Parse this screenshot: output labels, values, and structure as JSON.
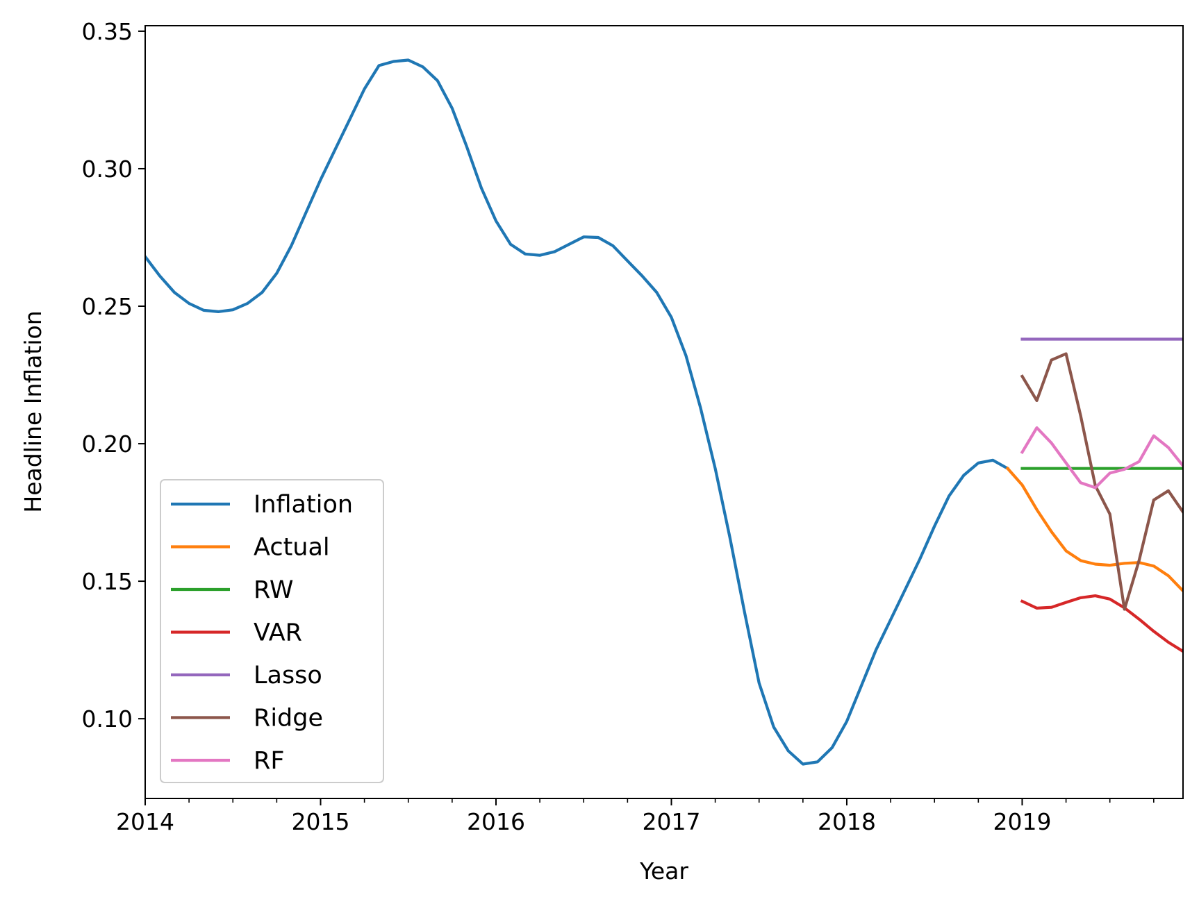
{
  "chart_data": {
    "type": "line",
    "title": "",
    "xlabel": "Year",
    "ylabel": "Headline Inflation",
    "xlim": [
      2014.0,
      2019.917
    ],
    "ylim": [
      0.071,
      0.352
    ],
    "x_ticks": [
      {
        "value": 2014,
        "label": "2014"
      },
      {
        "value": 2015,
        "label": "2015"
      },
      {
        "value": 2016,
        "label": "2016"
      },
      {
        "value": 2017,
        "label": "2017"
      },
      {
        "value": 2018,
        "label": "2018"
      },
      {
        "value": 2019,
        "label": "2019"
      }
    ],
    "x_minor_ticks": [
      2014.25,
      2014.5,
      2014.75,
      2015.25,
      2015.5,
      2015.75,
      2016.25,
      2016.5,
      2016.75,
      2017.25,
      2017.5,
      2017.75,
      2018.25,
      2018.5,
      2018.75,
      2019.25,
      2019.5,
      2019.75
    ],
    "y_ticks": [
      {
        "value": 0.1,
        "label": "0.10"
      },
      {
        "value": 0.15,
        "label": "0.15"
      },
      {
        "value": 0.2,
        "label": "0.20"
      },
      {
        "value": 0.25,
        "label": "0.25"
      },
      {
        "value": 0.3,
        "label": "0.30"
      },
      {
        "value": 0.35,
        "label": "0.35"
      }
    ],
    "legend_position": "lower-left",
    "series": [
      {
        "name": "Inflation",
        "color": "#1f77b4",
        "start": 2014.0,
        "step": 0.08333,
        "values": [
          0.268,
          0.261,
          0.255,
          0.251,
          0.2485,
          0.248,
          0.2487,
          0.251,
          0.255,
          0.262,
          0.272,
          0.284,
          0.296,
          0.307,
          0.318,
          0.329,
          0.3375,
          0.339,
          0.3395,
          0.337,
          0.332,
          0.322,
          0.308,
          0.293,
          0.281,
          0.2725,
          0.269,
          0.2685,
          0.2698,
          0.2725,
          0.2752,
          0.275,
          0.272,
          0.2665,
          0.261,
          0.255,
          0.246,
          0.232,
          0.213,
          0.191,
          0.166,
          0.139,
          0.113,
          0.097,
          0.0883,
          0.0835,
          0.0843,
          0.0895,
          0.099,
          0.112,
          0.125,
          0.136,
          0.147,
          0.158,
          0.17,
          0.181,
          0.1885,
          0.193,
          0.194,
          0.191
        ]
      },
      {
        "name": "Actual",
        "color": "#ff7f0e",
        "start": 2018.917,
        "step": 0.08333,
        "values": [
          0.191,
          0.185,
          0.176,
          0.168,
          0.161,
          0.1575,
          0.1562,
          0.1558,
          0.1565,
          0.1568,
          0.1555,
          0.152,
          0.1465
        ]
      },
      {
        "name": "RW",
        "color": "#2ca02c",
        "start": 2019.0,
        "step": 0.08333,
        "values": [
          0.191,
          0.191,
          0.191,
          0.191,
          0.191,
          0.191,
          0.191,
          0.191,
          0.191,
          0.191,
          0.191,
          0.191
        ]
      },
      {
        "name": "VAR",
        "color": "#d62728",
        "start": 2019.0,
        "step": 0.08333,
        "values": [
          0.1427,
          0.1402,
          0.1405,
          0.1423,
          0.144,
          0.1447,
          0.1435,
          0.1403,
          0.1362,
          0.1318,
          0.1278,
          0.1245
        ]
      },
      {
        "name": "Lasso",
        "color": "#9467bd",
        "start": 2019.0,
        "step": 0.08333,
        "values": [
          0.238,
          0.238,
          0.238,
          0.238,
          0.238,
          0.238,
          0.238,
          0.238,
          0.238,
          0.238,
          0.238,
          0.238
        ]
      },
      {
        "name": "Ridge",
        "color": "#8c564b",
        "start": 2019.0,
        "step": 0.08333,
        "values": [
          0.2245,
          0.2157,
          0.2304,
          0.2327,
          0.2102,
          0.1848,
          0.1744,
          0.1398,
          0.1576,
          0.1795,
          0.1829,
          0.1752
        ]
      },
      {
        "name": "RF",
        "color": "#e377c2",
        "start": 2019.0,
        "step": 0.08333,
        "values": [
          0.1969,
          0.2058,
          0.2003,
          0.193,
          0.1858,
          0.184,
          0.1893,
          0.1907,
          0.1935,
          0.2029,
          0.1986,
          0.192
        ]
      }
    ]
  }
}
